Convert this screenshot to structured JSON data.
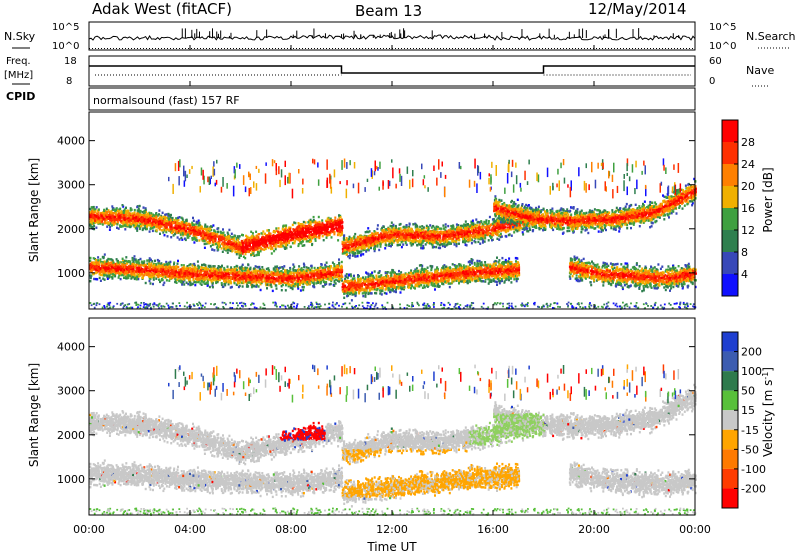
{
  "header": {
    "left": "Adak West (fitACF)",
    "center": "Beam 13",
    "right": "12/May/2014"
  },
  "sky": {
    "label": "N.Sky",
    "tick_top": "10^5",
    "tick_bottom": "10^0",
    "right_label": "N.Search",
    "right_tick_top": "10^5",
    "right_tick_bottom": "10^0"
  },
  "freq": {
    "label_top": "Freq.",
    "label_unit": "[MHz]",
    "tick_top": "18",
    "tick_bottom": "8",
    "cpid_label": "CPID",
    "right_label": "Nave",
    "right_tick_top": "60",
    "right_tick_bottom": "0",
    "mode_text": "normalsound (fast) 157 RF",
    "step_series": {
      "x_hours": [
        0,
        10,
        10,
        18,
        18,
        24
      ],
      "levels": [
        "high",
        "high",
        "low",
        "low",
        "high",
        "high"
      ]
    }
  },
  "chart_data": [
    {
      "type": "heatmap",
      "panel": "power",
      "ylabel": "Slant Range [km]",
      "xlabel": "",
      "yticks": [
        1000,
        2000,
        3000,
        4000
      ],
      "ylim": [
        180,
        4650
      ],
      "xlim_hours": [
        0,
        24
      ],
      "colorbar": {
        "label": "Power [dB]",
        "ticks": [
          "4",
          "8",
          "12",
          "16",
          "20",
          "24",
          "28"
        ],
        "colors": [
          "#1010ff",
          "#3848b8",
          "#2f7f4f",
          "#3fa040",
          "#f0b000",
          "#ff8000",
          "#ff3000",
          "#ff0000"
        ]
      },
      "echo_bands": [
        {
          "t_start": 0.0,
          "t_end": 10.0,
          "range_km": [
            2300,
            2250,
            2000,
            1600,
            1900,
            2100
          ]
        },
        {
          "t_start": 0.0,
          "t_end": 10.0,
          "range_km": [
            1150,
            1100,
            1000,
            950,
            900,
            1050
          ]
        },
        {
          "t_start": 10.0,
          "t_end": 17.8,
          "range_km": [
            1600,
            1900,
            1850,
            2000,
            2300
          ]
        },
        {
          "t_start": 10.0,
          "t_end": 17.0,
          "range_km": [
            700,
            850,
            1000,
            1100
          ]
        },
        {
          "t_start": 16.0,
          "t_end": 24.0,
          "range_km": [
            2500,
            2250,
            2200,
            2250,
            2400,
            2900
          ]
        },
        {
          "t_start": 19.0,
          "t_end": 24.0,
          "range_km": [
            1150,
            1000,
            950,
            900,
            1000
          ]
        }
      ]
    },
    {
      "type": "heatmap",
      "panel": "velocity",
      "ylabel": "Slant Range [km]",
      "xlabel": "Time UT",
      "xticks": [
        "00:00",
        "04:00",
        "08:00",
        "12:00",
        "16:00",
        "20:00",
        "00:00"
      ],
      "yticks": [
        1000,
        2000,
        3000,
        4000
      ],
      "ylim": [
        180,
        4650
      ],
      "xlim_hours": [
        0,
        24
      ],
      "colorbar": {
        "label": "Velocity [m s^-1]",
        "ticks": [
          "200",
          "100",
          "50",
          "15",
          "-15",
          "-50",
          "-100",
          "-200"
        ],
        "colors": [
          "#1f3fd0",
          "#3c5cb0",
          "#2e7a4c",
          "#58c03a",
          "#c8c8c8",
          "#ffa500",
          "#ff7a00",
          "#ff3c00",
          "#ff0000"
        ]
      }
    }
  ]
}
